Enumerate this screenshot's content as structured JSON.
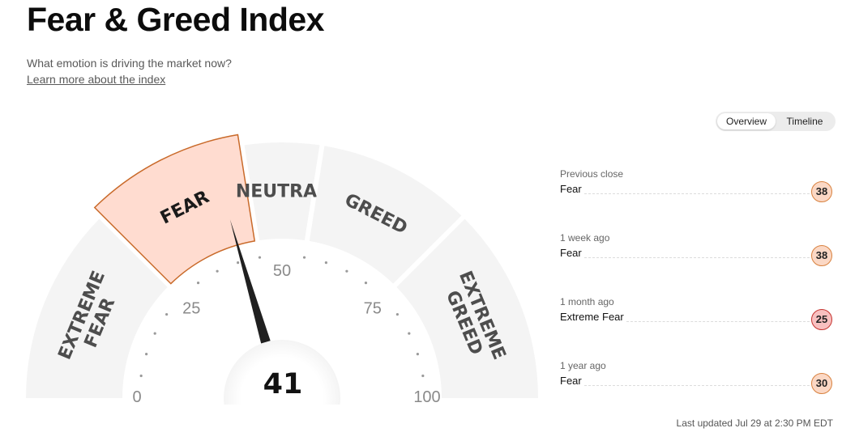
{
  "header": {
    "title": "Fear & Greed Index",
    "subtitle": "What emotion is driving the market now?",
    "learn_more": "Learn more about the index"
  },
  "view_toggle": {
    "options": [
      "Overview",
      "Timeline"
    ],
    "selected": "Overview"
  },
  "gauge": {
    "value": "41",
    "current_rating": "FEAR",
    "segments": [
      {
        "label_lines": [
          "EXTREME",
          "FEAR"
        ],
        "range": [
          0,
          25
        ]
      },
      {
        "label_lines": [
          "FEAR"
        ],
        "range": [
          25,
          45
        ]
      },
      {
        "label_lines": [
          "NEUTRAL"
        ],
        "range": [
          45,
          55
        ]
      },
      {
        "label_lines": [
          "GREED"
        ],
        "range": [
          55,
          75
        ]
      },
      {
        "label_lines": [
          "EXTREME",
          "GREED"
        ],
        "range": [
          75,
          100
        ]
      }
    ],
    "tick_labels": [
      "0",
      "25",
      "50",
      "75",
      "100"
    ],
    "colors": {
      "segment_bg": "#f4f4f4",
      "active_fill": "#ffdcd0",
      "active_stroke": "#c96a2a",
      "needle": "#202020"
    }
  },
  "history": [
    {
      "label": "Previous close",
      "rating": "Fear",
      "value": "38",
      "badge_bg": "#fbd8c5",
      "badge_border": "#d8813e"
    },
    {
      "label": "1 week ago",
      "rating": "Fear",
      "value": "38",
      "badge_bg": "#fbd8c5",
      "badge_border": "#d8813e"
    },
    {
      "label": "1 month ago",
      "rating": "Extreme Fear",
      "value": "25",
      "badge_bg": "#f8c0c0",
      "badge_border": "#c5332f"
    },
    {
      "label": "1 year ago",
      "rating": "Fear",
      "value": "30",
      "badge_bg": "#fbd8c5",
      "badge_border": "#d8813e"
    }
  ],
  "last_updated": "Last updated Jul 29 at 2:30 PM EDT"
}
